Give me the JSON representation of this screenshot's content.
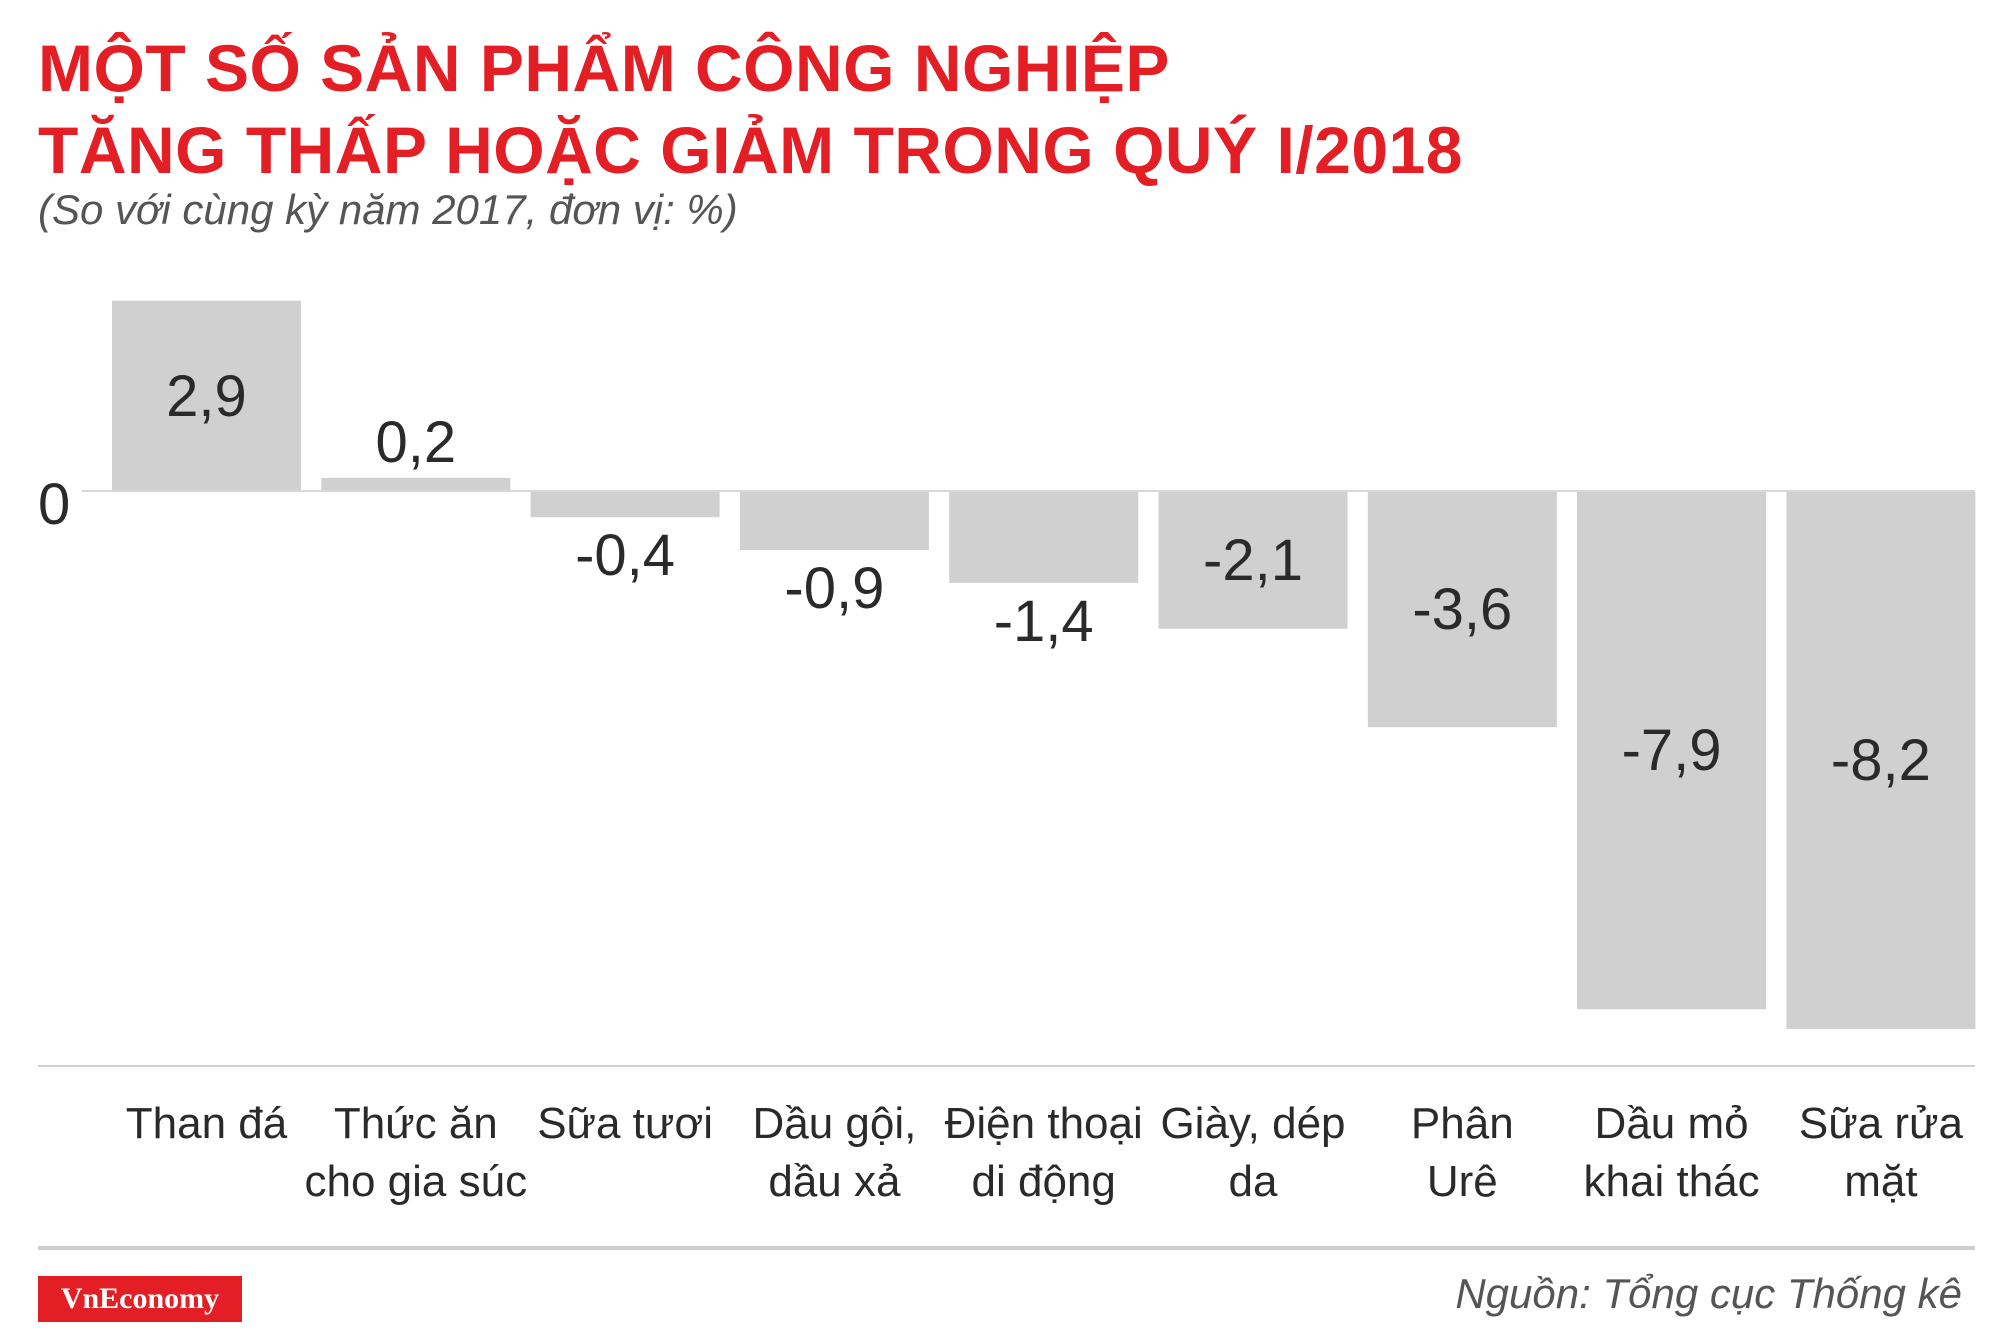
{
  "header": {
    "title_line1": "MỘT SỐ SẢN PHẨM CÔNG NGHIỆP",
    "title_line2": "TĂNG THẤP HOẶC GIẢM TRONG QUÝ I/2018",
    "subtitle": "(So với cùng kỳ năm 2017, đơn vị: %)"
  },
  "footer": {
    "logo_text": "VnEconomy",
    "source": "Nguồn: Tổng cục Thống kê"
  },
  "colors": {
    "title": "#e31e24",
    "bar": "#d0d0d0",
    "text": "#2a2a2a",
    "logo_bg": "#e31e24"
  },
  "chart_data": {
    "type": "bar",
    "zero_label": "0",
    "categories": [
      [
        "Than đá"
      ],
      [
        "Thức ăn",
        "cho gia súc"
      ],
      [
        "Sữa tươi"
      ],
      [
        "Dầu gội,",
        "dầu xả"
      ],
      [
        "Điện thoại",
        "di động"
      ],
      [
        "Giày, dép",
        "da"
      ],
      [
        "Phân",
        "Urê"
      ],
      [
        "Dầu mỏ",
        "khai thác"
      ],
      [
        "Sữa rửa",
        "mặt"
      ]
    ],
    "values": [
      2.9,
      0.2,
      -0.4,
      -0.9,
      -1.4,
      -2.1,
      -3.6,
      -7.9,
      -8.2
    ],
    "labels": [
      "2,9",
      "0,2",
      "-0,4",
      "-0,9",
      "-1,4",
      "-2,1",
      "-3,6",
      "-7,9",
      "-8,2"
    ],
    "ylim": [
      -8.2,
      2.9
    ],
    "grid": false,
    "legend": "none"
  }
}
